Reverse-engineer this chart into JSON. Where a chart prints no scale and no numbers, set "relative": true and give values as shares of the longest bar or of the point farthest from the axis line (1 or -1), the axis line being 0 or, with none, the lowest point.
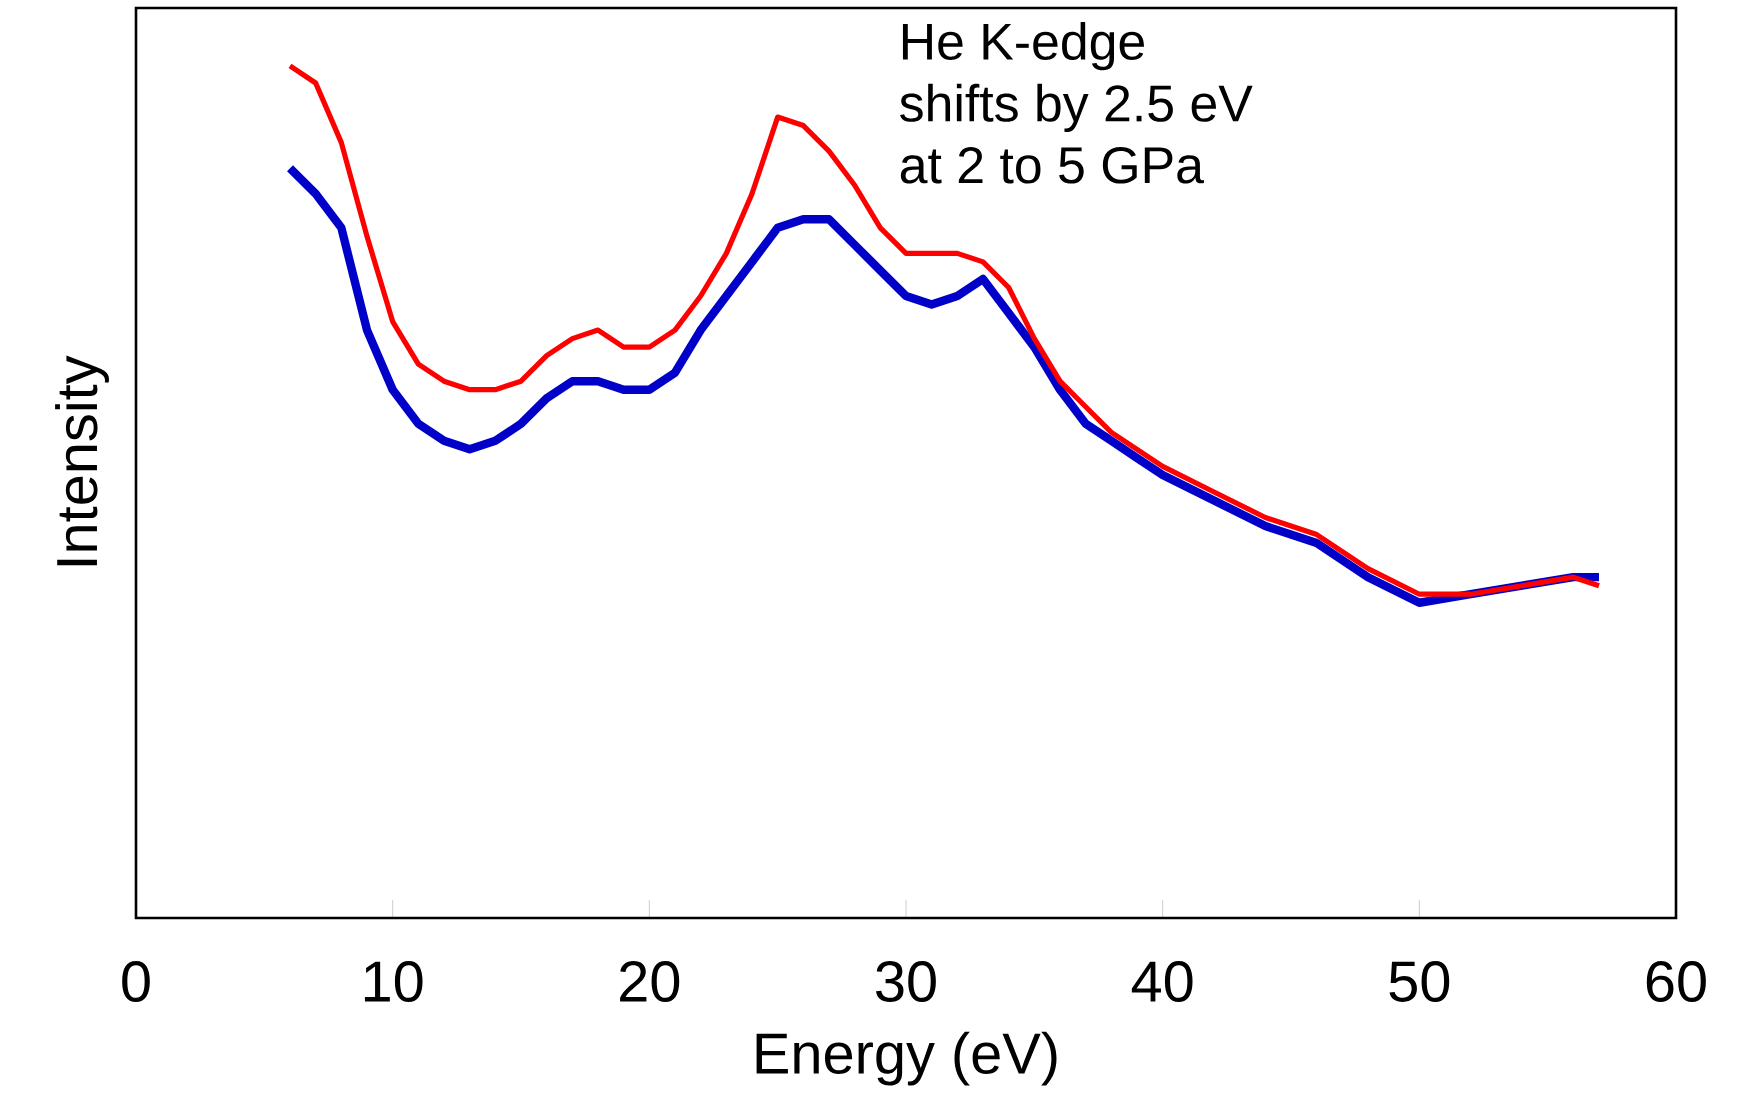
{
  "chart_data": {
    "type": "line",
    "relative": true,
    "xlabel": "Energy (eV)",
    "ylabel": "Intensity",
    "annotations": [
      "He K-edge",
      "shifts by 2.5 eV",
      "at 2 to 5 GPa"
    ],
    "xlim": [
      0,
      60
    ],
    "xticks": [
      0,
      10,
      20,
      30,
      40,
      50,
      60
    ],
    "tick_labels": "x",
    "grid": false,
    "marker": "none",
    "line_style": "solid",
    "x": [
      6,
      7,
      8,
      9,
      10,
      11,
      12,
      13,
      14,
      15,
      16,
      17,
      18,
      19,
      20,
      21,
      22,
      23,
      24,
      25,
      26,
      27,
      28,
      29,
      30,
      31,
      32,
      33,
      34,
      35,
      36,
      37,
      38,
      39,
      40,
      42,
      44,
      46,
      48,
      50,
      52,
      54,
      56,
      57
    ],
    "series": [
      {
        "color": "#0000c8",
        "values": [
          0.88,
          0.85,
          0.81,
          0.69,
          0.62,
          0.58,
          0.56,
          0.55,
          0.56,
          0.58,
          0.61,
          0.63,
          0.63,
          0.62,
          0.62,
          0.64,
          0.69,
          0.73,
          0.77,
          0.81,
          0.82,
          0.82,
          0.79,
          0.76,
          0.73,
          0.72,
          0.73,
          0.75,
          0.71,
          0.67,
          0.62,
          0.58,
          0.56,
          0.54,
          0.52,
          0.49,
          0.46,
          0.44,
          0.4,
          0.37,
          0.38,
          0.39,
          0.4,
          0.4
        ]
      },
      {
        "color": "#ff0000",
        "values": [
          1.0,
          0.98,
          0.91,
          0.8,
          0.7,
          0.65,
          0.63,
          0.62,
          0.62,
          0.63,
          0.66,
          0.68,
          0.69,
          0.67,
          0.67,
          0.69,
          0.73,
          0.78,
          0.85,
          0.94,
          0.93,
          0.9,
          0.86,
          0.81,
          0.78,
          0.78,
          0.78,
          0.77,
          0.74,
          0.68,
          0.63,
          0.6,
          0.57,
          0.55,
          0.53,
          0.5,
          0.47,
          0.45,
          0.41,
          0.38,
          0.38,
          0.39,
          0.4,
          0.39
        ]
      }
    ]
  }
}
